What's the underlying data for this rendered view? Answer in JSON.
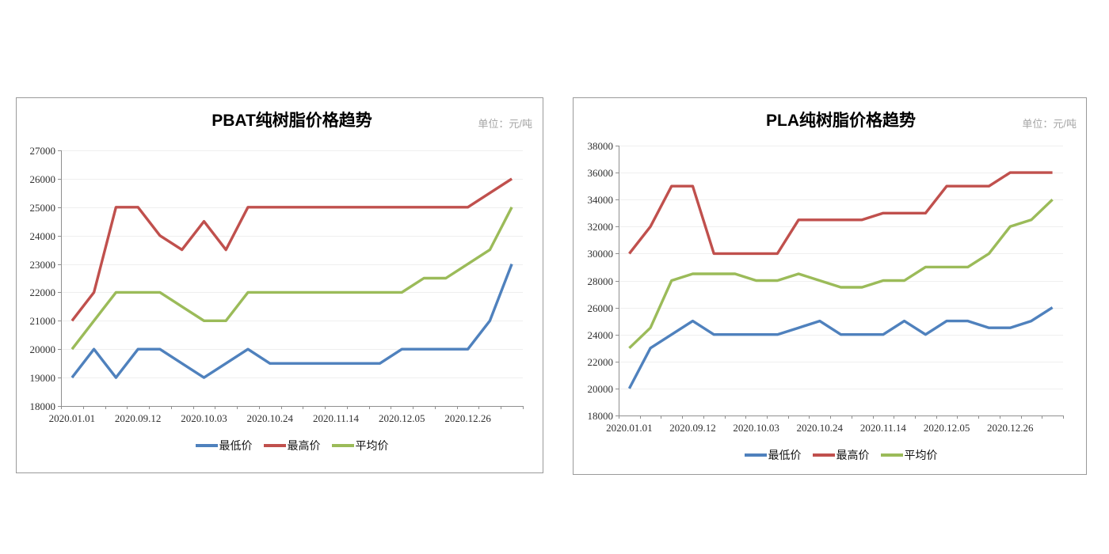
{
  "page": {
    "background": "#ffffff"
  },
  "colors": {
    "series_min": "#4F81BD",
    "series_max": "#C0504D",
    "series_avg": "#9BBB59",
    "card_border": "#9a9a9a",
    "axis": "#8f8f8f",
    "gridline": "#efefef",
    "tick_label": "#303030",
    "unit_label": "#a5a5a5"
  },
  "chart_data": [
    {
      "type": "line",
      "title": "PBAT纯树脂价格趋势",
      "unit_label": "单位：元/吨",
      "categories": [
        "2020.01.01",
        "",
        "",
        "2020.09.12",
        "",
        "",
        "2020.10.03",
        "",
        "",
        "2020.10.24",
        "",
        "",
        "2020.11.14",
        "",
        "",
        "2020.12.05",
        "",
        "",
        "2020.12.26",
        "",
        ""
      ],
      "series": [
        {
          "name": "最低价",
          "color": "#4F81BD",
          "values": [
            19000,
            20000,
            19000,
            20000,
            20000,
            19500,
            19000,
            19500,
            20000,
            19500,
            19500,
            19500,
            19500,
            19500,
            19500,
            20000,
            20000,
            20000,
            20000,
            21000,
            23000
          ]
        },
        {
          "name": "最高价",
          "color": "#C0504D",
          "values": [
            21000,
            22000,
            25000,
            25000,
            24000,
            23500,
            24500,
            23500,
            25000,
            25000,
            25000,
            25000,
            25000,
            25000,
            25000,
            25000,
            25000,
            25000,
            25000,
            25500,
            26000
          ]
        },
        {
          "name": "平均价",
          "color": "#9BBB59",
          "values": [
            20000,
            21000,
            22000,
            22000,
            22000,
            21500,
            21000,
            21000,
            22000,
            22000,
            22000,
            22000,
            22000,
            22000,
            22000,
            22000,
            22500,
            22500,
            23000,
            23500,
            25000
          ]
        }
      ],
      "ylim": [
        18000,
        27000
      ],
      "ytick_step": 1000,
      "grid": true,
      "legend_position": "bottom"
    },
    {
      "type": "line",
      "title": "PLA纯树脂价格趋势",
      "unit_label": "单位：元/吨",
      "categories": [
        "2020.01.01",
        "",
        "",
        "2020.09.12",
        "",
        "",
        "2020.10.03",
        "",
        "",
        "2020.10.24",
        "",
        "",
        "2020.11.14",
        "",
        "",
        "2020.12.05",
        "",
        "",
        "2020.12.26",
        "",
        ""
      ],
      "series": [
        {
          "name": "最低价",
          "color": "#4F81BD",
          "values": [
            20000,
            23000,
            24000,
            25000,
            24000,
            24000,
            24000,
            24000,
            24500,
            25000,
            24000,
            24000,
            24000,
            25000,
            24000,
            25000,
            25000,
            24500,
            24500,
            25000,
            26000
          ]
        },
        {
          "name": "最高价",
          "color": "#C0504D",
          "values": [
            30000,
            32000,
            35000,
            35000,
            30000,
            30000,
            30000,
            30000,
            32500,
            32500,
            32500,
            32500,
            33000,
            33000,
            33000,
            35000,
            35000,
            35000,
            36000,
            36000,
            36000
          ]
        },
        {
          "name": "平均价",
          "color": "#9BBB59",
          "values": [
            23000,
            24500,
            28000,
            28500,
            28500,
            28500,
            28000,
            28000,
            28500,
            28000,
            27500,
            27500,
            28000,
            28000,
            29000,
            29000,
            29000,
            30000,
            32000,
            32500,
            34000
          ]
        }
      ],
      "ylim": [
        18000,
        38000
      ],
      "ytick_step": 2000,
      "grid": true,
      "legend_position": "bottom"
    }
  ]
}
